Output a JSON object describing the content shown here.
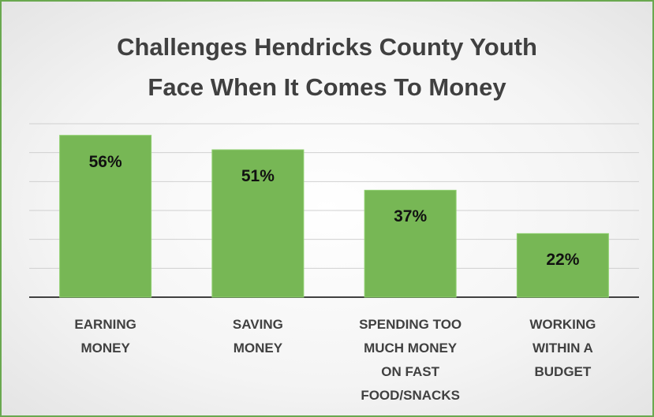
{
  "chart_data": {
    "type": "bar",
    "title": "Challenges Hendricks County Youth\nFace When It Comes To Money",
    "categories": [
      "EARNING\nMONEY",
      "SAVING\nMONEY",
      "SPENDING TOO\nMUCH MONEY\nON FAST\nFOOD/SNACKS",
      "WORKING\nWITHIN A\nBUDGET"
    ],
    "values": [
      56,
      51,
      37,
      22
    ],
    "value_labels": [
      "56%",
      "51%",
      "37%",
      "22%"
    ],
    "color": "#77b755",
    "ylim": [
      0,
      60
    ],
    "yticks": [
      0,
      10,
      20,
      30,
      40,
      50,
      60
    ],
    "grid": true
  }
}
